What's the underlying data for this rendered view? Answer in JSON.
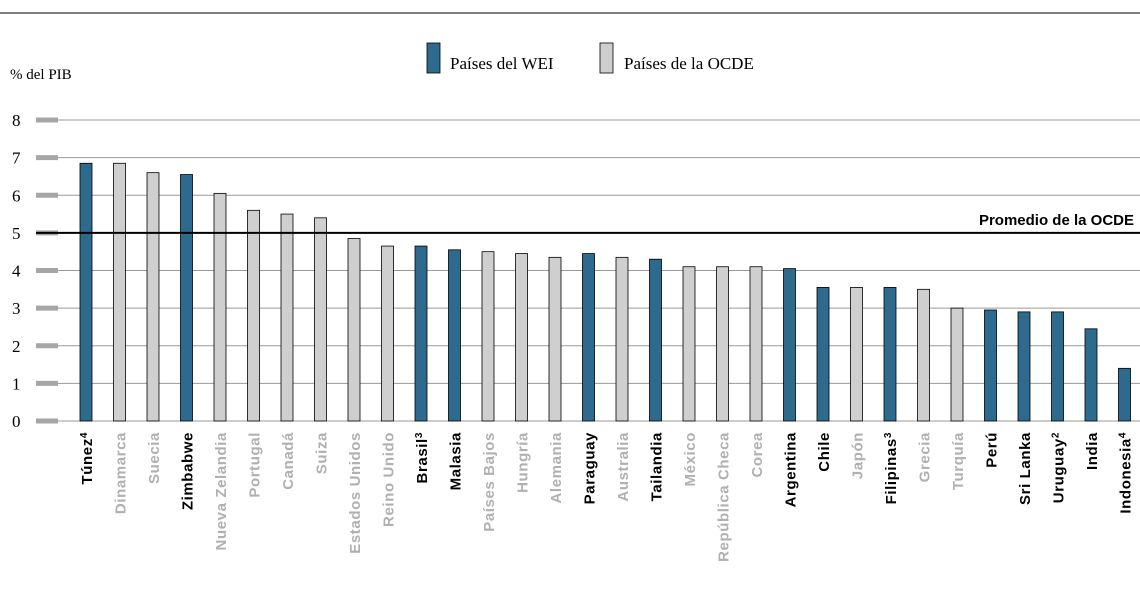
{
  "chart_data": {
    "type": "bar",
    "ylabel": "% del PIB",
    "ylim": [
      0,
      8
    ],
    "yticks": [
      "0",
      "1",
      "2",
      "3",
      "4",
      "5",
      "6",
      "7",
      "8"
    ],
    "grid": true,
    "legend_position": "top-center",
    "series": [
      {
        "name": "Países del WEI",
        "color": "#2e6a8e"
      },
      {
        "name": "Países de la OCDE",
        "color": "#cfcfcf"
      }
    ],
    "reference_line": {
      "label": "Promedio de la OCDE",
      "value": 5.0
    },
    "categories": [
      {
        "label": "Túnez",
        "sup": "4",
        "value": 6.85,
        "group": "WEI"
      },
      {
        "label": "Dinamarca",
        "sup": "",
        "value": 6.85,
        "group": "OCDE"
      },
      {
        "label": "Suecia",
        "sup": "",
        "value": 6.6,
        "group": "OCDE"
      },
      {
        "label": "Zimbabwe",
        "sup": "",
        "value": 6.55,
        "group": "WEI"
      },
      {
        "label": "Nueva Zelandia",
        "sup": "",
        "value": 6.05,
        "group": "OCDE"
      },
      {
        "label": "Portugal",
        "sup": "",
        "value": 5.6,
        "group": "OCDE"
      },
      {
        "label": "Canadá",
        "sup": "",
        "value": 5.5,
        "group": "OCDE"
      },
      {
        "label": "Suiza",
        "sup": "",
        "value": 5.4,
        "group": "OCDE"
      },
      {
        "label": "Estados Unidos",
        "sup": "",
        "value": 4.85,
        "group": "OCDE"
      },
      {
        "label": "Reino Unido",
        "sup": "",
        "value": 4.65,
        "group": "OCDE"
      },
      {
        "label": "Brasil",
        "sup": "3",
        "value": 4.65,
        "group": "WEI"
      },
      {
        "label": "Malasia",
        "sup": "",
        "value": 4.55,
        "group": "WEI"
      },
      {
        "label": "Países Bajos",
        "sup": "",
        "value": 4.5,
        "group": "OCDE"
      },
      {
        "label": "Hungría",
        "sup": "",
        "value": 4.45,
        "group": "OCDE"
      },
      {
        "label": "Alemania",
        "sup": "",
        "value": 4.35,
        "group": "OCDE"
      },
      {
        "label": "Paraguay",
        "sup": "",
        "value": 4.45,
        "group": "WEI"
      },
      {
        "label": "Australia",
        "sup": "",
        "value": 4.35,
        "group": "OCDE"
      },
      {
        "label": "Tailandia",
        "sup": "",
        "value": 4.3,
        "group": "WEI"
      },
      {
        "label": "México",
        "sup": "",
        "value": 4.1,
        "group": "OCDE"
      },
      {
        "label": "República Checa",
        "sup": "",
        "value": 4.1,
        "group": "OCDE"
      },
      {
        "label": "Corea",
        "sup": "",
        "value": 4.1,
        "group": "OCDE"
      },
      {
        "label": "Argentina",
        "sup": "",
        "value": 4.05,
        "group": "WEI"
      },
      {
        "label": "Chile",
        "sup": "",
        "value": 3.55,
        "group": "WEI"
      },
      {
        "label": "Japón",
        "sup": "",
        "value": 3.55,
        "group": "OCDE"
      },
      {
        "label": "Filipinas",
        "sup": "3",
        "value": 3.55,
        "group": "WEI"
      },
      {
        "label": "Grecia",
        "sup": "",
        "value": 3.5,
        "group": "OCDE"
      },
      {
        "label": "Turquía",
        "sup": "",
        "value": 3.0,
        "group": "OCDE"
      },
      {
        "label": "Perú",
        "sup": "",
        "value": 2.95,
        "group": "WEI"
      },
      {
        "label": "Sri Lanka",
        "sup": "",
        "value": 2.9,
        "group": "WEI"
      },
      {
        "label": "Uruguay",
        "sup": "2",
        "value": 2.9,
        "group": "WEI"
      },
      {
        "label": "India",
        "sup": "",
        "value": 2.45,
        "group": "WEI"
      },
      {
        "label": "Indonesia",
        "sup": "4",
        "value": 1.4,
        "group": "WEI"
      }
    ]
  },
  "colors": {
    "wei_bar": "#2e6a8e",
    "ocde_bar": "#cfcfcf",
    "wei_label": "#000000",
    "ocde_label": "#b0b0b0",
    "grid": "#9a9a9a",
    "axis_tick": "#a6a6a6"
  }
}
